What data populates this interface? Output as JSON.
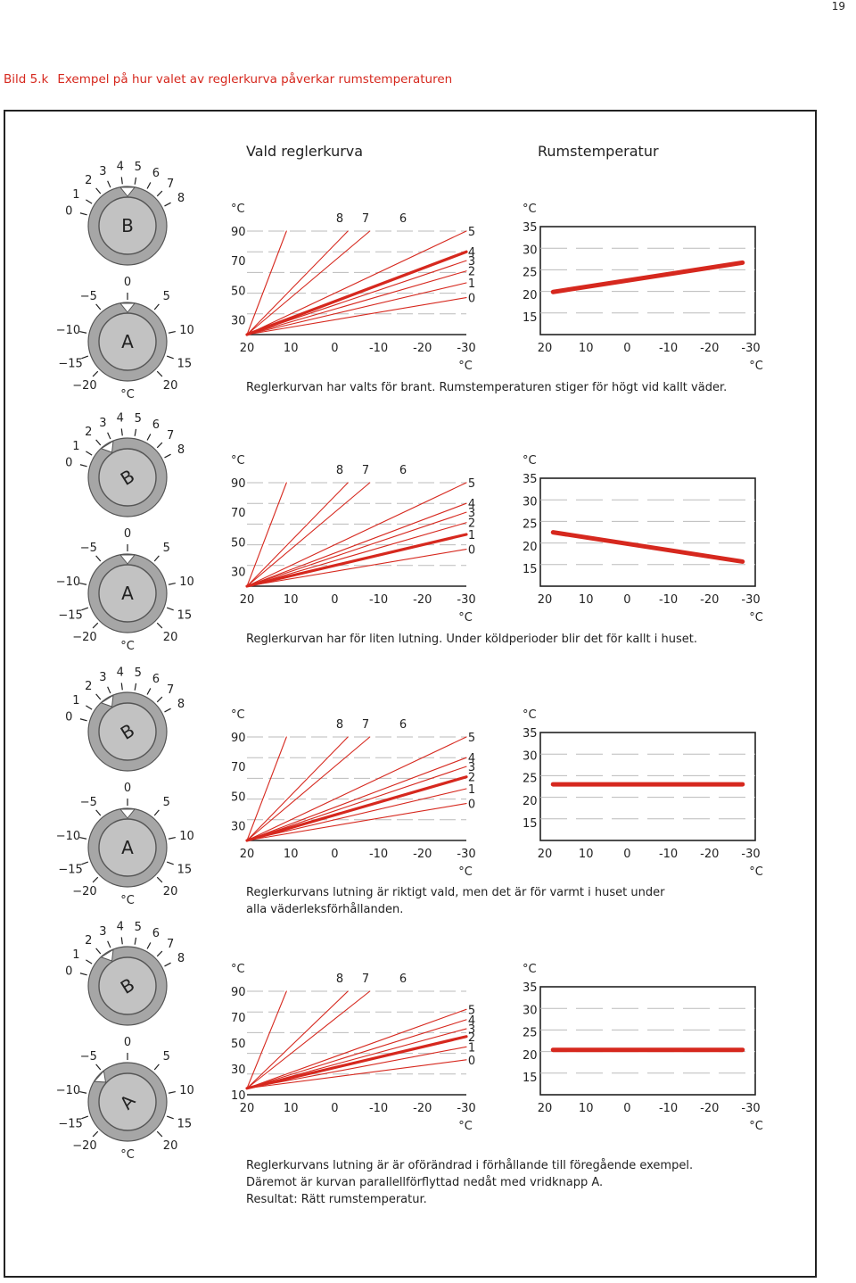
{
  "page_number": "19",
  "figure": {
    "label": "Bild 5.k",
    "title": "Exempel på hur valet av reglerkurva påverkar rumstemperaturen"
  },
  "headers": {
    "curve_chart": "Vald reglerkurva",
    "room_chart": "Rumstemperatur"
  },
  "dial": {
    "upper_knob": "B",
    "lower_knob": "A",
    "upper_scale": [
      "0",
      "1",
      "2",
      "3",
      "4",
      "5",
      "6",
      "7",
      "8"
    ],
    "lower_scale": [
      "−20",
      "−15",
      "−10",
      "−5",
      "0",
      "5",
      "10",
      "15",
      "20"
    ],
    "unit": "°C"
  },
  "colors": {
    "curve_red": "#d6281e",
    "dial_outer": "#a6a6a6",
    "dial_inner": "#c2c2c2",
    "grid": "#bbbbbb"
  },
  "chart_data": [
    {
      "type": "line",
      "title": "Vald reglerkurva",
      "unit": "°C",
      "x_ticks": [
        "20",
        "10",
        "0",
        "-10",
        "-20",
        "-30"
      ],
      "y_ticks": [
        "90",
        "70",
        "50",
        "30"
      ],
      "curve_labels": [
        "8",
        "7",
        "6",
        "5",
        "4",
        "3",
        "2",
        "1",
        "0"
      ],
      "xlabel": "°C",
      "selected_curve": "4",
      "series": [
        {
          "name": "8",
          "x": [
            20,
            -8
          ],
          "y": [
            20,
            90
          ]
        },
        {
          "name": "7",
          "x": [
            20,
            -3
          ],
          "y": [
            20,
            90
          ]
        },
        {
          "name": "6",
          "x": [
            20,
            11
          ],
          "y": [
            20,
            90
          ]
        },
        {
          "name": "5",
          "x": [
            20,
            -30
          ],
          "y": [
            20,
            90
          ]
        },
        {
          "name": "4",
          "x": [
            20,
            -30
          ],
          "y": [
            20,
            76
          ]
        },
        {
          "name": "3",
          "x": [
            20,
            -30
          ],
          "y": [
            20,
            70
          ]
        },
        {
          "name": "2",
          "x": [
            20,
            -30
          ],
          "y": [
            20,
            63
          ]
        },
        {
          "name": "1",
          "x": [
            20,
            -30
          ],
          "y": [
            20,
            55
          ]
        },
        {
          "name": "0",
          "x": [
            20,
            -30
          ],
          "y": [
            20,
            45
          ]
        }
      ]
    },
    {
      "type": "line",
      "title": "Rumstemperatur",
      "unit": "°C",
      "x_ticks": [
        "20",
        "10",
        "0",
        "-10",
        "-20",
        "-30"
      ],
      "y_ticks": [
        "35",
        "30",
        "25",
        "20",
        "15"
      ],
      "xlabel": "°C",
      "series": [
        {
          "x": [
            18,
            -28
          ],
          "y": [
            20.5,
            27
          ]
        }
      ]
    },
    {
      "type": "line",
      "title": "Vald reglerkurva",
      "unit": "°C",
      "x_ticks": [
        "20",
        "10",
        "0",
        "-10",
        "-20",
        "-30"
      ],
      "y_ticks": [
        "90",
        "70",
        "50",
        "30"
      ],
      "curve_labels": [
        "8",
        "7",
        "6",
        "5",
        "4",
        "3",
        "2",
        "1",
        "0"
      ],
      "xlabel": "°C",
      "selected_curve": "1",
      "series": [
        {
          "name": "8",
          "x": [
            20,
            -8
          ],
          "y": [
            20,
            90
          ]
        },
        {
          "name": "7",
          "x": [
            20,
            -3
          ],
          "y": [
            20,
            90
          ]
        },
        {
          "name": "6",
          "x": [
            20,
            11
          ],
          "y": [
            20,
            90
          ]
        },
        {
          "name": "5",
          "x": [
            20,
            -30
          ],
          "y": [
            20,
            90
          ]
        },
        {
          "name": "4",
          "x": [
            20,
            -30
          ],
          "y": [
            20,
            76
          ]
        },
        {
          "name": "3",
          "x": [
            20,
            -30
          ],
          "y": [
            20,
            70
          ]
        },
        {
          "name": "2",
          "x": [
            20,
            -30
          ],
          "y": [
            20,
            63
          ]
        },
        {
          "name": "1",
          "x": [
            20,
            -30
          ],
          "y": [
            20,
            55
          ]
        },
        {
          "name": "0",
          "x": [
            20,
            -30
          ],
          "y": [
            20,
            45
          ]
        }
      ]
    },
    {
      "type": "line",
      "title": "Rumstemperatur",
      "unit": "°C",
      "x_ticks": [
        "20",
        "10",
        "0",
        "-10",
        "-20",
        "-30"
      ],
      "y_ticks": [
        "35",
        "30",
        "25",
        "20",
        "15"
      ],
      "xlabel": "°C",
      "series": [
        {
          "x": [
            18,
            -28
          ],
          "y": [
            23,
            16.5
          ]
        }
      ]
    },
    {
      "type": "line",
      "title": "Vald reglerkurva",
      "unit": "°C",
      "x_ticks": [
        "20",
        "10",
        "0",
        "-10",
        "-20",
        "-30"
      ],
      "y_ticks": [
        "90",
        "70",
        "50",
        "30"
      ],
      "curve_labels": [
        "8",
        "7",
        "6",
        "5",
        "4",
        "3",
        "2",
        "1",
        "0"
      ],
      "xlabel": "°C",
      "selected_curve": "2",
      "series": [
        {
          "name": "8",
          "x": [
            20,
            -8
          ],
          "y": [
            20,
            90
          ]
        },
        {
          "name": "7",
          "x": [
            20,
            -3
          ],
          "y": [
            20,
            90
          ]
        },
        {
          "name": "6",
          "x": [
            20,
            11
          ],
          "y": [
            20,
            90
          ]
        },
        {
          "name": "5",
          "x": [
            20,
            -30
          ],
          "y": [
            20,
            90
          ]
        },
        {
          "name": "4",
          "x": [
            20,
            -30
          ],
          "y": [
            20,
            76
          ]
        },
        {
          "name": "3",
          "x": [
            20,
            -30
          ],
          "y": [
            20,
            70
          ]
        },
        {
          "name": "2",
          "x": [
            20,
            -30
          ],
          "y": [
            20,
            63
          ]
        },
        {
          "name": "1",
          "x": [
            20,
            -30
          ],
          "y": [
            20,
            55
          ]
        },
        {
          "name": "0",
          "x": [
            20,
            -30
          ],
          "y": [
            20,
            45
          ]
        }
      ]
    },
    {
      "type": "line",
      "title": "Rumstemperatur",
      "unit": "°C",
      "x_ticks": [
        "20",
        "10",
        "0",
        "-10",
        "-20",
        "-30"
      ],
      "y_ticks": [
        "35",
        "30",
        "25",
        "20",
        "15"
      ],
      "xlabel": "°C",
      "series": [
        {
          "x": [
            18,
            -28
          ],
          "y": [
            23.5,
            23.5
          ]
        }
      ]
    },
    {
      "type": "line",
      "title": "Vald reglerkurva",
      "unit": "°C",
      "x_ticks": [
        "20",
        "10",
        "0",
        "-10",
        "-20",
        "-30"
      ],
      "y_ticks": [
        "90",
        "70",
        "50",
        "30",
        "10"
      ],
      "curve_labels": [
        "8",
        "7",
        "6",
        "5",
        "4",
        "3",
        "2",
        "1",
        "0"
      ],
      "xlabel": "°C",
      "selected_curve": "2",
      "series": [
        {
          "name": "8",
          "x": [
            20,
            -8
          ],
          "y": [
            15,
            90
          ]
        },
        {
          "name": "7",
          "x": [
            20,
            -3
          ],
          "y": [
            15,
            90
          ]
        },
        {
          "name": "6",
          "x": [
            20,
            11
          ],
          "y": [
            15,
            90
          ]
        },
        {
          "name": "5",
          "x": [
            20,
            -30
          ],
          "y": [
            15,
            76
          ]
        },
        {
          "name": "4",
          "x": [
            20,
            -30
          ],
          "y": [
            15,
            68
          ]
        },
        {
          "name": "3",
          "x": [
            20,
            -30
          ],
          "y": [
            15,
            61
          ]
        },
        {
          "name": "2",
          "x": [
            20,
            -30
          ],
          "y": [
            15,
            55
          ]
        },
        {
          "name": "1",
          "x": [
            20,
            -30
          ],
          "y": [
            15,
            47
          ]
        },
        {
          "name": "0",
          "x": [
            20,
            -30
          ],
          "y": [
            15,
            37
          ]
        }
      ]
    },
    {
      "type": "line",
      "title": "Rumstemperatur",
      "unit": "°C",
      "x_ticks": [
        "20",
        "10",
        "0",
        "-10",
        "-20",
        "-30"
      ],
      "y_ticks": [
        "35",
        "30",
        "25",
        "20",
        "15"
      ],
      "xlabel": "°C",
      "series": [
        {
          "x": [
            18,
            -28
          ],
          "y": [
            21,
            21
          ]
        }
      ]
    }
  ],
  "captions": [
    [
      "Reglerkurvan har valts för brant. Rumstemperaturen stiger för högt vid kallt väder."
    ],
    [
      "Reglerkurvan har för liten lutning. Under köldperioder blir det för kallt i huset."
    ],
    [
      "Reglerkurvans lutning är riktigt vald,  men det är för varmt i huset under",
      "alla väderleksförhållanden."
    ],
    [
      "Reglerkurvans lutning är är oförändrad i förhållande till föregående exempel.",
      "Däremot är kurvan parallellförflyttad nedåt med vridknapp A.",
      "Resultat: Rätt rumstemperatur."
    ]
  ]
}
